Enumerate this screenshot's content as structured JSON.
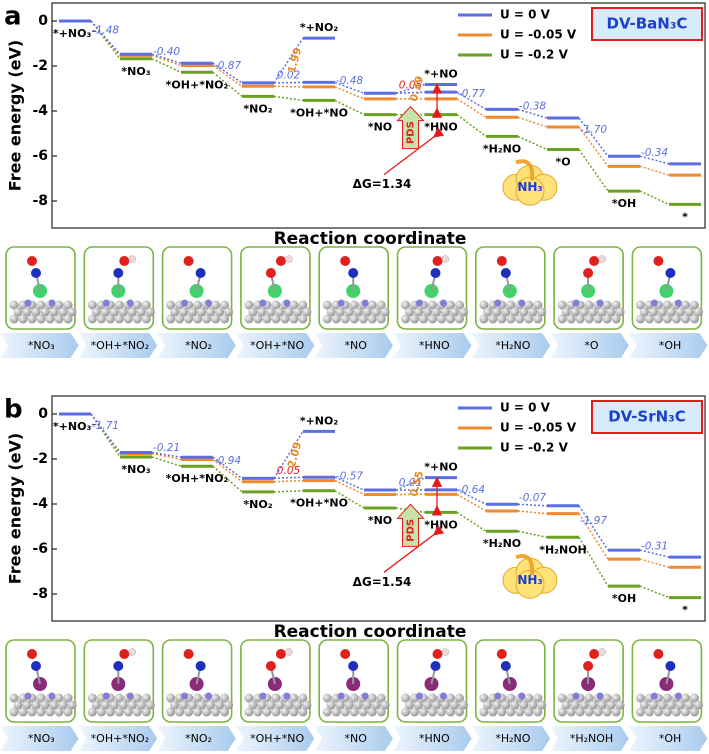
{
  "chart_data": [
    {
      "type": "step",
      "panel_label": "a",
      "title": "DV-BaN₃C",
      "xlabel": "Reaction coordinate",
      "ylabel": "Free energy (eV)",
      "ylim": [
        -9.2,
        0.8
      ],
      "yticks": [
        0,
        -2,
        -4,
        -6,
        -8
      ],
      "categories": [
        "*+NO₃⁻",
        "*NO₃",
        "*OH+*NO₂",
        "*NO₂",
        "*OH+*NO",
        "*NO",
        "*HNO",
        "*H₂NO",
        "*O",
        "*OH",
        "*"
      ],
      "series": [
        {
          "name": "U = 0 V",
          "color": "#5a6fe3",
          "values": [
            0,
            -1.48,
            -1.88,
            -2.75,
            -2.73,
            -3.21,
            -3.16,
            -3.93,
            -4.31,
            -6.01,
            -6.35
          ]
        },
        {
          "name": "U = -0.05 V",
          "color": "#f08a2c",
          "values": [
            0,
            -1.53,
            -1.98,
            -2.9,
            -2.93,
            -3.46,
            -3.46,
            -4.28,
            -4.71,
            -6.46,
            -6.85
          ]
        },
        {
          "name": "U = -0.2 V",
          "color": "#6aa121",
          "values": [
            0,
            -1.68,
            -2.28,
            -3.35,
            -3.53,
            -4.16,
            -4.16,
            -5.13,
            -5.71,
            -7.56,
            -8.15
          ]
        }
      ],
      "deltas": {
        "values": [
          -1.48,
          -0.4,
          -0.87,
          0.02,
          -0.48,
          0.05,
          -0.77,
          -0.38,
          -1.7,
          -0.34
        ],
        "value_labels": [
          "-1.48",
          "-0.40",
          "-0.87",
          "0.02",
          "-0.48",
          "0.05",
          "-0.77",
          "-0.38",
          "-1.70",
          "-0.34"
        ],
        "colors": [
          "#5a6fe3",
          "#5a6fe3",
          "#5a6fe3",
          "#5a6fe3",
          "#5a6fe3",
          "#e41a1c",
          "#5a6fe3",
          "#5a6fe3",
          "#5a6fe3",
          "#5a6fe3"
        ]
      },
      "branches": [
        {
          "name": "*+NO₂",
          "value": -0.76,
          "step": 4,
          "delta": 1.99,
          "delta_label": "1.99",
          "delta_color": "#e8891c"
        },
        {
          "name": "*+NO",
          "value": -2.82,
          "step": 6,
          "delta": 0.39,
          "delta_label": "0.39",
          "delta_color": "#e8891c"
        }
      ],
      "annotation": "ΔG=1.34",
      "pds": "PDS",
      "product": "NH₃",
      "structures": [
        "*NO₃",
        "*OH+*NO₂",
        "*NO₂",
        "*OH+*NO",
        "*NO",
        "*HNO",
        "*H₂NO",
        "*O",
        "*OH"
      ]
    },
    {
      "type": "step",
      "panel_label": "b",
      "title": "DV-SrN₃C",
      "xlabel": "Reaction coordinate",
      "ylabel": "Free energy (eV)",
      "ylim": [
        -9.2,
        0.8
      ],
      "yticks": [
        0,
        -2,
        -4,
        -6,
        -8
      ],
      "categories": [
        "*+NO₃⁻",
        "*NO₃",
        "*OH+*NO₂",
        "*NO₂",
        "*OH+*NO",
        "*NO",
        "*HNO",
        "*H₂NO",
        "*H₂NOH",
        "*OH",
        "*"
      ],
      "series": [
        {
          "name": "U = 0 V",
          "color": "#5a6fe3",
          "values": [
            0,
            -1.71,
            -1.92,
            -2.86,
            -2.81,
            -3.38,
            -3.37,
            -4.01,
            -4.08,
            -6.05,
            -6.36
          ]
        },
        {
          "name": "U = -0.05 V",
          "color": "#f08a2c",
          "values": [
            0,
            -1.76,
            -2.02,
            -3.01,
            -2.96,
            -3.58,
            -3.57,
            -4.31,
            -4.43,
            -6.45,
            -6.81
          ]
        },
        {
          "name": "U = -0.2 V",
          "color": "#6aa121",
          "values": [
            0,
            -1.91,
            -2.32,
            -3.46,
            -3.41,
            -4.18,
            -4.37,
            -5.21,
            -5.48,
            -7.65,
            -8.16
          ]
        }
      ],
      "deltas": {
        "values": [
          -1.71,
          -0.21,
          -0.94,
          0.05,
          -0.57,
          0.01,
          -0.64,
          -0.07,
          -1.97,
          -0.31
        ],
        "value_labels": [
          "-1.71",
          "-0.21",
          "-0.94",
          "0.05",
          "-0.57",
          "0.01",
          "-0.64",
          "-0.07",
          "-1.97",
          "-0.31"
        ],
        "colors": [
          "#5a6fe3",
          "#5a6fe3",
          "#5a6fe3",
          "#e41a1c",
          "#5a6fe3",
          "#5a6fe3",
          "#5a6fe3",
          "#5a6fe3",
          "#5a6fe3",
          "#5a6fe3"
        ]
      },
      "branches": [
        {
          "name": "*+NO₂",
          "value": -0.77,
          "step": 4,
          "delta": 2.09,
          "delta_label": "2.09",
          "delta_color": "#e8891c"
        },
        {
          "name": "*+NO",
          "value": -2.83,
          "step": 6,
          "delta": 0.55,
          "delta_label": "0.55",
          "delta_color": "#e8891c"
        }
      ],
      "annotation": "ΔG=1.54",
      "pds": "PDS",
      "product": "NH₃",
      "structures": [
        "*NO₃",
        "*OH+*NO₂",
        "*NO₂",
        "*OH+*NO",
        "*NO",
        "*HNO",
        "*H₂NO",
        "*H₂NOH",
        "*OH"
      ]
    }
  ]
}
